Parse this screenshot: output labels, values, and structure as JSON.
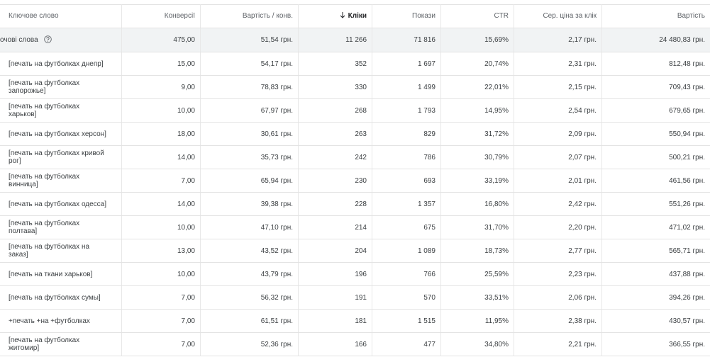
{
  "header": {
    "columns": [
      "Ключове слово",
      "Конверсії",
      "Вартість / конв.",
      "Кліки",
      "Покази",
      "CTR",
      "Сер. ціна за клік",
      "Вартість"
    ]
  },
  "summary": {
    "cells": [
      "очові слова",
      "475,00",
      "51,54 грн.",
      "11 266",
      "71 816",
      "15,69%",
      "2,17 грн.",
      "24 480,83 грн."
    ]
  },
  "rows": [
    [
      "[печать на футболках днепр]",
      "15,00",
      "54,17 грн.",
      "352",
      "1 697",
      "20,74%",
      "2,31 грн.",
      "812,48 грн."
    ],
    [
      "[печать на футболках запорожье]",
      "9,00",
      "78,83 грн.",
      "330",
      "1 499",
      "22,01%",
      "2,15 грн.",
      "709,43 грн."
    ],
    [
      "[печать на футболках харьков]",
      "10,00",
      "67,97 грн.",
      "268",
      "1 793",
      "14,95%",
      "2,54 грн.",
      "679,65 грн."
    ],
    [
      "[печать на футболках херсон]",
      "18,00",
      "30,61 грн.",
      "263",
      "829",
      "31,72%",
      "2,09 грн.",
      "550,94 грн."
    ],
    [
      "[печать на футболках кривой рог]",
      "14,00",
      "35,73 грн.",
      "242",
      "786",
      "30,79%",
      "2,07 грн.",
      "500,21 грн."
    ],
    [
      "[печать на футболках винница]",
      "7,00",
      "65,94 грн.",
      "230",
      "693",
      "33,19%",
      "2,01 грн.",
      "461,56 грн."
    ],
    [
      "[печать на футболках одесса]",
      "14,00",
      "39,38 грн.",
      "228",
      "1 357",
      "16,80%",
      "2,42 грн.",
      "551,26 грн."
    ],
    [
      "[печать на футболках полтава]",
      "10,00",
      "47,10 грн.",
      "214",
      "675",
      "31,70%",
      "2,20 грн.",
      "471,02 грн."
    ],
    [
      "[печать на футболках на заказ]",
      "13,00",
      "43,52 грн.",
      "204",
      "1 089",
      "18,73%",
      "2,77 грн.",
      "565,71 грн."
    ],
    [
      "[печать на ткани харьков]",
      "10,00",
      "43,79 грн.",
      "196",
      "766",
      "25,59%",
      "2,23 грн.",
      "437,88 грн."
    ],
    [
      "[печать на футболках сумы]",
      "7,00",
      "56,32 грн.",
      "191",
      "570",
      "33,51%",
      "2,06 грн.",
      "394,26 грн."
    ],
    [
      "+печать +на +футболках",
      "7,00",
      "61,51 грн.",
      "181",
      "1 515",
      "11,95%",
      "2,38 грн.",
      "430,57 грн."
    ],
    [
      "[печать на футболках житомир]",
      "7,00",
      "52,36 грн.",
      "166",
      "477",
      "34,80%",
      "2,21 грн.",
      "366,55 грн."
    ]
  ]
}
